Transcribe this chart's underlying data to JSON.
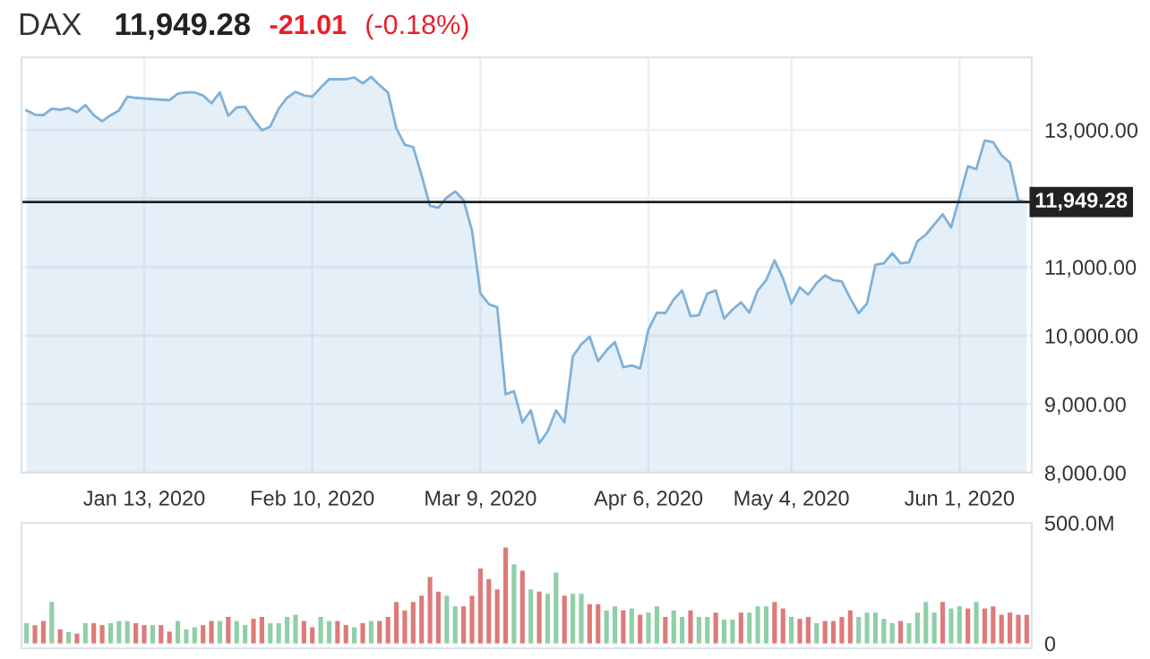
{
  "chart_data": [
    {
      "type": "area",
      "title": "DAX",
      "annotations": [
        "11,949.28",
        "-21.01",
        "(-0.18%)"
      ],
      "categories": [
        null,
        null,
        null,
        null,
        null,
        null,
        null,
        null,
        null,
        null,
        null,
        null,
        null,
        null,
        "Jan 13, 2020",
        null,
        null,
        null,
        null,
        null,
        null,
        null,
        null,
        null,
        null,
        null,
        null,
        null,
        null,
        null,
        null,
        null,
        null,
        null,
        "Feb 10, 2020",
        null,
        null,
        null,
        null,
        null,
        null,
        null,
        null,
        null,
        null,
        null,
        null,
        null,
        null,
        null,
        null,
        null,
        null,
        null,
        "Mar 9, 2020",
        null,
        null,
        null,
        null,
        null,
        null,
        null,
        null,
        null,
        null,
        null,
        null,
        null,
        null,
        null,
        null,
        null,
        null,
        null,
        "Apr 6, 2020",
        null,
        null,
        null,
        null,
        null,
        null,
        null,
        null,
        null,
        null,
        null,
        null,
        null,
        null,
        null,
        null,
        "May 4, 2020",
        null,
        null,
        null,
        null,
        null,
        null,
        null,
        null,
        null,
        null,
        null,
        null,
        null,
        null,
        null,
        null,
        null,
        null,
        null,
        "Jun 1, 2020",
        null,
        null,
        null,
        null,
        null,
        null,
        null,
        null
      ],
      "color": "#7fb1d9",
      "values": [
        13285,
        13224,
        13215,
        13311,
        13294,
        13320,
        13259,
        13364,
        13215,
        13128,
        13215,
        13285,
        13486,
        13469,
        13460,
        13451,
        13443,
        13434,
        13530,
        13548,
        13548,
        13504,
        13390,
        13548,
        13206,
        13329,
        13338,
        13154,
        12996,
        13049,
        13311,
        13469,
        13556,
        13504,
        13486,
        13618,
        13740,
        13740,
        13740,
        13766,
        13679,
        13775,
        13653,
        13548,
        13023,
        12786,
        12751,
        12340,
        11894,
        11868,
        12016,
        12104,
        11973,
        11535,
        10616,
        10459,
        10415,
        9146,
        9190,
        8735,
        8910,
        8429,
        8604,
        8910,
        8735,
        9698,
        9873,
        9986,
        9628,
        9785,
        9908,
        9540,
        9566,
        9523,
        10091,
        10336,
        10328,
        10529,
        10660,
        10284,
        10301,
        10616,
        10660,
        10249,
        10380,
        10485,
        10336,
        10660,
        10809,
        11098,
        10835,
        10468,
        10704,
        10599,
        10765,
        10879,
        10809,
        10791,
        10546,
        10328,
        10468,
        11036,
        11054,
        11203,
        11054,
        11071,
        11378,
        11474,
        11623,
        11771,
        11579,
        12016,
        12471,
        12428,
        12848,
        12821,
        12629,
        12524,
        11973,
        11949
      ],
      "ylim": [
        8000,
        14060
      ],
      "yticks": [
        {
          "value": 8000,
          "label": "8,000.00"
        },
        {
          "value": 9000,
          "label": "9,000.00"
        },
        {
          "value": 10000,
          "label": "10,000.00"
        },
        {
          "value": 11000,
          "label": "11,000.00"
        },
        {
          "value": 12000,
          "label": null
        },
        {
          "value": 13000,
          "label": "13,000.00"
        }
      ],
      "ref_lines": [
        {
          "axis": "y",
          "value": 11949.28,
          "label": "11,949.28",
          "color": "#222222"
        }
      ],
      "grid": true
    },
    {
      "type": "bar",
      "tick_labels": "y",
      "categories": [
        null,
        null,
        null,
        null,
        null,
        null,
        null,
        null,
        null,
        null,
        null,
        null,
        null,
        null,
        null,
        null,
        null,
        null,
        null,
        null,
        null,
        null,
        null,
        null,
        null,
        null,
        null,
        null,
        null,
        null,
        null,
        null,
        null,
        null,
        null,
        null,
        null,
        null,
        null,
        null,
        null,
        null,
        null,
        null,
        null,
        null,
        null,
        null,
        null,
        null,
        null,
        null,
        null,
        null,
        null,
        null,
        null,
        null,
        null,
        null,
        null,
        null,
        null,
        null,
        null,
        null,
        null,
        null,
        null,
        null,
        null,
        null,
        null,
        null,
        null,
        null,
        null,
        null,
        null,
        null,
        null,
        null,
        null,
        null,
        null,
        null,
        null,
        null,
        null,
        null,
        null,
        null,
        null,
        null,
        null,
        null,
        null,
        null,
        null,
        null,
        null,
        null,
        null,
        null,
        null,
        null,
        null,
        null,
        null,
        null,
        null,
        null,
        null,
        null,
        null,
        null,
        null,
        null,
        null,
        null
      ],
      "values": [
        84,
        76,
        93,
        172,
        58,
        47,
        41,
        84,
        84,
        76,
        84,
        93,
        93,
        84,
        76,
        76,
        76,
        49,
        93,
        58,
        67,
        76,
        93,
        93,
        110,
        93,
        76,
        102,
        110,
        84,
        84,
        110,
        119,
        93,
        67,
        110,
        93,
        93,
        76,
        67,
        84,
        93,
        93,
        110,
        172,
        137,
        172,
        198,
        276,
        215,
        198,
        154,
        154,
        198,
        311,
        267,
        224,
        398,
        328,
        302,
        224,
        215,
        206,
        294,
        198,
        206,
        206,
        163,
        163,
        137,
        154,
        137,
        145,
        119,
        128,
        154,
        110,
        137,
        110,
        137,
        110,
        110,
        128,
        99,
        99,
        128,
        128,
        154,
        154,
        172,
        145,
        110,
        102,
        110,
        84,
        93,
        93,
        110,
        137,
        110,
        128,
        128,
        102,
        84,
        93,
        84,
        128,
        172,
        128,
        172,
        145,
        154,
        145,
        172,
        145,
        154,
        119,
        128,
        119,
        119
      ],
      "colors": [
        "#8ecfa8",
        "#de7a7a",
        "#de7a7a",
        "#8ecfa8",
        "#de7a7a",
        "#8ecfa8",
        "#de7a7a",
        "#8ecfa8",
        "#de7a7a",
        "#de7a7a",
        "#8ecfa8",
        "#8ecfa8",
        "#8ecfa8",
        "#de7a7a",
        "#de7a7a",
        "#8ecfa8",
        "#de7a7a",
        "#de7a7a",
        "#8ecfa8",
        "#8ecfa8",
        "#8ecfa8",
        "#de7a7a",
        "#de7a7a",
        "#8ecfa8",
        "#de7a7a",
        "#8ecfa8",
        "#8ecfa8",
        "#de7a7a",
        "#de7a7a",
        "#8ecfa8",
        "#8ecfa8",
        "#8ecfa8",
        "#8ecfa8",
        "#de7a7a",
        "#de7a7a",
        "#8ecfa8",
        "#8ecfa8",
        "#de7a7a",
        "#de7a7a",
        "#8ecfa8",
        "#de7a7a",
        "#8ecfa8",
        "#de7a7a",
        "#de7a7a",
        "#de7a7a",
        "#de7a7a",
        "#de7a7a",
        "#de7a7a",
        "#de7a7a",
        "#de7a7a",
        "#8ecfa8",
        "#8ecfa8",
        "#de7a7a",
        "#de7a7a",
        "#de7a7a",
        "#de7a7a",
        "#de7a7a",
        "#de7a7a",
        "#8ecfa8",
        "#de7a7a",
        "#8ecfa8",
        "#de7a7a",
        "#8ecfa8",
        "#8ecfa8",
        "#de7a7a",
        "#8ecfa8",
        "#8ecfa8",
        "#de7a7a",
        "#de7a7a",
        "#8ecfa8",
        "#8ecfa8",
        "#de7a7a",
        "#8ecfa8",
        "#de7a7a",
        "#8ecfa8",
        "#8ecfa8",
        "#de7a7a",
        "#8ecfa8",
        "#8ecfa8",
        "#de7a7a",
        "#8ecfa8",
        "#8ecfa8",
        "#de7a7a",
        "#8ecfa8",
        "#8ecfa8",
        "#de7a7a",
        "#8ecfa8",
        "#8ecfa8",
        "#8ecfa8",
        "#de7a7a",
        "#de7a7a",
        "#8ecfa8",
        "#de7a7a",
        "#de7a7a",
        "#8ecfa8",
        "#de7a7a",
        "#de7a7a",
        "#de7a7a",
        "#de7a7a",
        "#8ecfa8",
        "#8ecfa8",
        "#8ecfa8",
        "#8ecfa8",
        "#8ecfa8",
        "#de7a7a",
        "#8ecfa8",
        "#8ecfa8",
        "#8ecfa8",
        "#8ecfa8",
        "#de7a7a",
        "#8ecfa8",
        "#8ecfa8",
        "#de7a7a",
        "#8ecfa8",
        "#de7a7a",
        "#de7a7a",
        "#de7a7a",
        "#de7a7a",
        "#de7a7a",
        "#de7a7a"
      ],
      "ylim": [
        -20,
        500
      ],
      "yticks": [
        0,
        {
          "value": 500,
          "label": "500.0M"
        }
      ]
    }
  ]
}
